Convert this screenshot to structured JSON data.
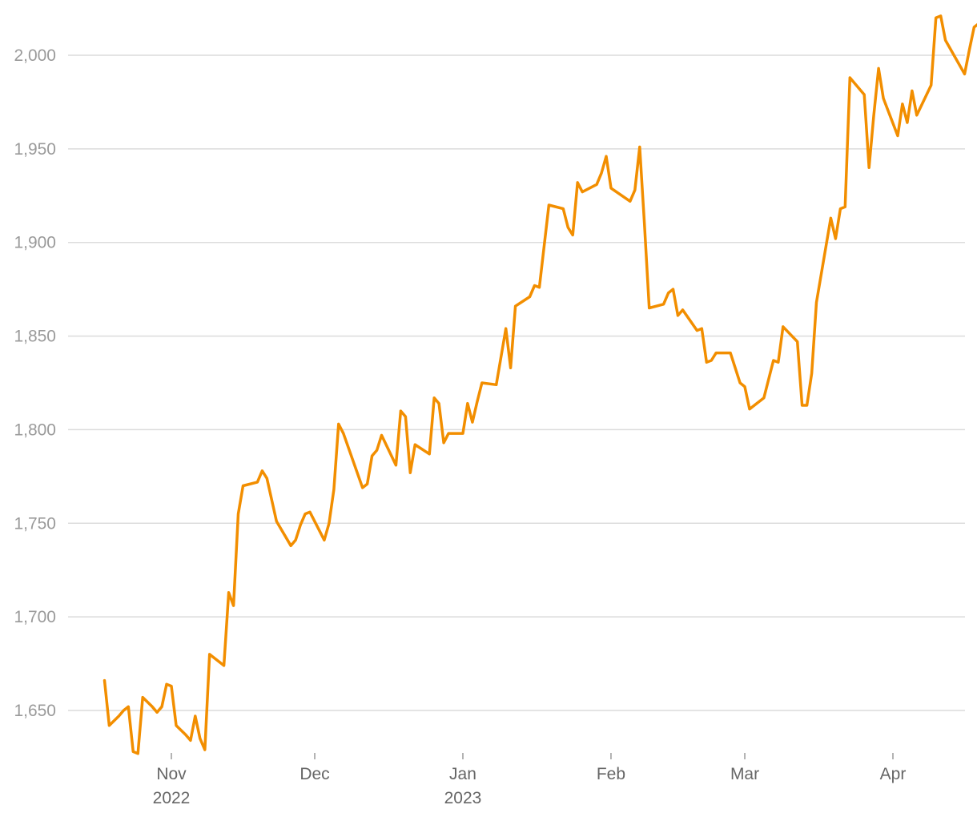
{
  "chart_data": {
    "type": "line",
    "title": "",
    "xlabel": "",
    "ylabel": "",
    "ylim": [
      1625,
      2021
    ],
    "xlim": [
      "2022-10-14",
      "2023-04-12"
    ],
    "grid": "horizontal",
    "legend": "none",
    "y_ticks": [
      {
        "value": 1650,
        "label": "1,650"
      },
      {
        "value": 1700,
        "label": "1,700"
      },
      {
        "value": 1750,
        "label": "1,750"
      },
      {
        "value": 1800,
        "label": "1,800"
      },
      {
        "value": 1850,
        "label": "1,850"
      },
      {
        "value": 1900,
        "label": "1,900"
      },
      {
        "value": 1950,
        "label": "1,950"
      },
      {
        "value": 2000,
        "label": "2,000"
      }
    ],
    "x_ticks": [
      {
        "date": "2022-11-01",
        "label": "Nov",
        "sublabel": "2022"
      },
      {
        "date": "2022-12-01",
        "label": "Dec",
        "sublabel": ""
      },
      {
        "date": "2023-01-01",
        "label": "Jan",
        "sublabel": "2023"
      },
      {
        "date": "2023-02-01",
        "label": "Feb",
        "sublabel": ""
      },
      {
        "date": "2023-03-01",
        "label": "Mar",
        "sublabel": ""
      },
      {
        "date": "2023-04-01",
        "label": "Apr",
        "sublabel": ""
      }
    ],
    "series": [
      {
        "color": "#f28e00",
        "points": [
          [
            "2022-10-18",
            1666
          ],
          [
            "2022-10-19",
            1642
          ],
          [
            "2022-10-21",
            1647
          ],
          [
            "2022-10-22",
            1650
          ],
          [
            "2022-10-23",
            1652
          ],
          [
            "2022-10-24",
            1628
          ],
          [
            "2022-10-25",
            1627
          ],
          [
            "2022-10-26",
            1657
          ],
          [
            "2022-10-28",
            1652
          ],
          [
            "2022-10-29",
            1649
          ],
          [
            "2022-10-30",
            1652
          ],
          [
            "2022-10-31",
            1664
          ],
          [
            "2022-11-01",
            1663
          ],
          [
            "2022-11-02",
            1642
          ],
          [
            "2022-11-04",
            1637
          ],
          [
            "2022-11-05",
            1634
          ],
          [
            "2022-11-06",
            1647
          ],
          [
            "2022-11-07",
            1635
          ],
          [
            "2022-11-08",
            1629
          ],
          [
            "2022-11-09",
            1680
          ],
          [
            "2022-11-12",
            1674
          ],
          [
            "2022-11-13",
            1713
          ],
          [
            "2022-11-14",
            1706
          ],
          [
            "2022-11-15",
            1755
          ],
          [
            "2022-11-16",
            1770
          ],
          [
            "2022-11-19",
            1772
          ],
          [
            "2022-11-20",
            1778
          ],
          [
            "2022-11-21",
            1774
          ],
          [
            "2022-11-23",
            1751
          ],
          [
            "2022-11-26",
            1738
          ],
          [
            "2022-11-27",
            1741
          ],
          [
            "2022-11-28",
            1749
          ],
          [
            "2022-11-29",
            1755
          ],
          [
            "2022-11-30",
            1756
          ],
          [
            "2022-12-03",
            1741
          ],
          [
            "2022-12-04",
            1750
          ],
          [
            "2022-12-05",
            1768
          ],
          [
            "2022-12-06",
            1803
          ],
          [
            "2022-12-07",
            1798
          ],
          [
            "2022-12-11",
            1769
          ],
          [
            "2022-12-12",
            1771
          ],
          [
            "2022-12-13",
            1786
          ],
          [
            "2022-12-14",
            1789
          ],
          [
            "2022-12-15",
            1797
          ],
          [
            "2022-12-18",
            1781
          ],
          [
            "2022-12-19",
            1810
          ],
          [
            "2022-12-20",
            1807
          ],
          [
            "2022-12-21",
            1777
          ],
          [
            "2022-12-22",
            1792
          ],
          [
            "2022-12-25",
            1787
          ],
          [
            "2022-12-26",
            1817
          ],
          [
            "2022-12-27",
            1814
          ],
          [
            "2022-12-28",
            1793
          ],
          [
            "2022-12-29",
            1798
          ],
          [
            "2023-01-01",
            1798
          ],
          [
            "2023-01-02",
            1814
          ],
          [
            "2023-01-03",
            1804
          ],
          [
            "2023-01-04",
            1815
          ],
          [
            "2023-01-05",
            1825
          ],
          [
            "2023-01-08",
            1824
          ],
          [
            "2023-01-10",
            1854
          ],
          [
            "2023-01-11",
            1833
          ],
          [
            "2023-01-12",
            1866
          ],
          [
            "2023-01-15",
            1871
          ],
          [
            "2023-01-16",
            1877
          ],
          [
            "2023-01-17",
            1876
          ],
          [
            "2023-01-19",
            1920
          ],
          [
            "2023-01-22",
            1918
          ],
          [
            "2023-01-23",
            1908
          ],
          [
            "2023-01-24",
            1904
          ],
          [
            "2023-01-25",
            1932
          ],
          [
            "2023-01-26",
            1927
          ],
          [
            "2023-01-29",
            1931
          ],
          [
            "2023-01-30",
            1937
          ],
          [
            "2023-01-31",
            1946
          ],
          [
            "2023-02-01",
            1929
          ],
          [
            "2023-02-05",
            1922
          ],
          [
            "2023-02-06",
            1928
          ],
          [
            "2023-02-07",
            1951
          ],
          [
            "2023-02-08",
            1910
          ],
          [
            "2023-02-09",
            1865
          ],
          [
            "2023-02-12",
            1867
          ],
          [
            "2023-02-13",
            1873
          ],
          [
            "2023-02-14",
            1875
          ],
          [
            "2023-02-15",
            1861
          ],
          [
            "2023-02-16",
            1864
          ],
          [
            "2023-02-19",
            1853
          ],
          [
            "2023-02-20",
            1854
          ],
          [
            "2023-02-21",
            1836
          ],
          [
            "2023-02-22",
            1837
          ],
          [
            "2023-02-23",
            1841
          ],
          [
            "2023-02-26",
            1841
          ],
          [
            "2023-02-27",
            1833
          ],
          [
            "2023-02-28",
            1825
          ],
          [
            "2023-03-01",
            1823
          ],
          [
            "2023-03-02",
            1811
          ],
          [
            "2023-03-05",
            1817
          ],
          [
            "2023-03-07",
            1837
          ],
          [
            "2023-03-08",
            1836
          ],
          [
            "2023-03-09",
            1855
          ],
          [
            "2023-03-12",
            1847
          ],
          [
            "2023-03-13",
            1813
          ],
          [
            "2023-03-14",
            1813
          ],
          [
            "2023-03-15",
            1830
          ],
          [
            "2023-03-16",
            1868
          ],
          [
            "2023-03-19",
            1913
          ],
          [
            "2023-03-20",
            1902
          ],
          [
            "2023-03-21",
            1918
          ],
          [
            "2023-03-22",
            1919
          ],
          [
            "2023-03-23",
            1988
          ],
          [
            "2023-03-26",
            1979
          ],
          [
            "2023-03-27",
            1940
          ],
          [
            "2023-03-28",
            1968
          ],
          [
            "2023-03-29",
            1993
          ],
          [
            "2023-03-30",
            1977
          ],
          [
            "2023-04-02",
            1957
          ],
          [
            "2023-04-03",
            1974
          ],
          [
            "2023-04-04",
            1964
          ],
          [
            "2023-04-05",
            1981
          ],
          [
            "2023-04-06",
            1968
          ],
          [
            "2023-04-09",
            1984
          ],
          [
            "2023-04-10",
            2020
          ],
          [
            "2023-04-11",
            2021
          ],
          [
            "2023-04-12",
            2008
          ],
          [
            "2023-04-16",
            1990
          ],
          [
            "2023-04-17",
            2003
          ],
          [
            "2023-04-18",
            2015
          ],
          [
            "2023-04-19",
            2017
          ]
        ]
      }
    ]
  }
}
